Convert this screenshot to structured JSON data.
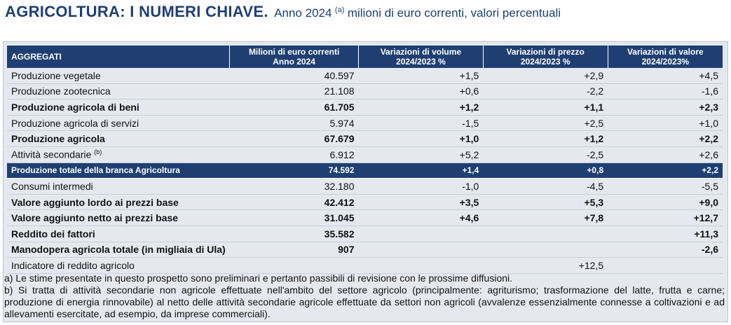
{
  "title": {
    "main": "AGRICOLTURA: I NUMERI CHIAVE.",
    "sub": "Anno 2024",
    "sup": "(a)",
    "rest": "milioni di euro correnti, valori percentuali"
  },
  "table": {
    "headers": [
      {
        "l1": "AGGREGATI",
        "l2": ""
      },
      {
        "l1": "Milioni di euro correnti",
        "l2": "Anno 2024"
      },
      {
        "l1": "Variazioni di volume",
        "l2": "2024/2023 %"
      },
      {
        "l1": "Variazioni di prezzo",
        "l2": "2024/2023 %"
      },
      {
        "l1": "Variazioni di valore",
        "l2": "2024/2023%"
      }
    ],
    "rows": [
      {
        "label": "Produzione vegetale",
        "sup": "",
        "value": "40.597",
        "volume": "+1,5",
        "price": "+2,9",
        "val_change": "+4,5"
      },
      {
        "label": "Produzione zootecnica",
        "sup": "",
        "value": "21.108",
        "volume": "+0,6",
        "price": "-2,2",
        "val_change": "-1,6"
      },
      {
        "label": "Produzione agricola di beni",
        "sup": "",
        "value": "61.705",
        "volume": "+1,2",
        "price": "+1,1",
        "val_change": "+2,3"
      },
      {
        "label": "Produzione agricola di servizi",
        "sup": "",
        "value": "5.974",
        "volume": "-1,5",
        "price": "+2,5",
        "val_change": "+1,0"
      },
      {
        "label": "Produzione agricola",
        "sup": "",
        "value": "67.679",
        "volume": "+1,0",
        "price": "+1,2",
        "val_change": "+2,2"
      },
      {
        "label": "Attività secondarie",
        "sup": "(b)",
        "value": "6.912",
        "volume": "+5,2",
        "price": "-2,5",
        "val_change": "+2,6"
      },
      {
        "label": "Produzione totale della branca Agricoltura",
        "sup": "",
        "value": "74.592",
        "volume": "+1,4",
        "price": "+0,8",
        "val_change": "+2,2"
      },
      {
        "label": "Consumi intermedi",
        "sup": "",
        "value": "32.180",
        "volume": "-1,0",
        "price": "-4,5",
        "val_change": "-5,5"
      },
      {
        "label": "Valore aggiunto lordo ai prezzi base",
        "sup": "",
        "value": "42.412",
        "volume": "+3,5",
        "price": "+5,3",
        "val_change": "+9,0"
      },
      {
        "label": "Valore aggiunto netto ai prezzi base",
        "sup": "",
        "value": "31.045",
        "volume": "+4,6",
        "price": "+7,8",
        "val_change": "+12,7"
      },
      {
        "label": "Reddito dei fattori",
        "sup": "",
        "value": "35.582",
        "volume": "",
        "price": "",
        "val_change": "+11,3"
      },
      {
        "label": "Manodopera agricola totale (in migliaia di Ula)",
        "sup": "",
        "value": "907",
        "volume": "",
        "price": "",
        "val_change": "-2,6"
      },
      {
        "label": "Indicatore di reddito agricolo",
        "sup": "",
        "value": "",
        "volume": "",
        "price": "+12,5",
        "val_change": ""
      }
    ]
  },
  "notes": [
    "a) Le stime presentate in questo prospetto sono preliminari e pertanto passibili di revisione con le prossime diffusioni.",
    "b) Si tratta di attività secondarie non agricole effettuate nell'ambito del settore agricolo (principalmente: agriturismo; trasformazione del latte, frutta e carne; produzione di energia rinnovabile) al netto delle attività secondarie agricole effettuate da settori non agricoli (avvalenze essenzialmente connesse a coltivazioni e ad allevamenti esercitate, ad esempio, da imprese commerciali)."
  ],
  "colors": {
    "header_bg": "#1f3f73",
    "panel_bg": "#e5e9ef"
  }
}
